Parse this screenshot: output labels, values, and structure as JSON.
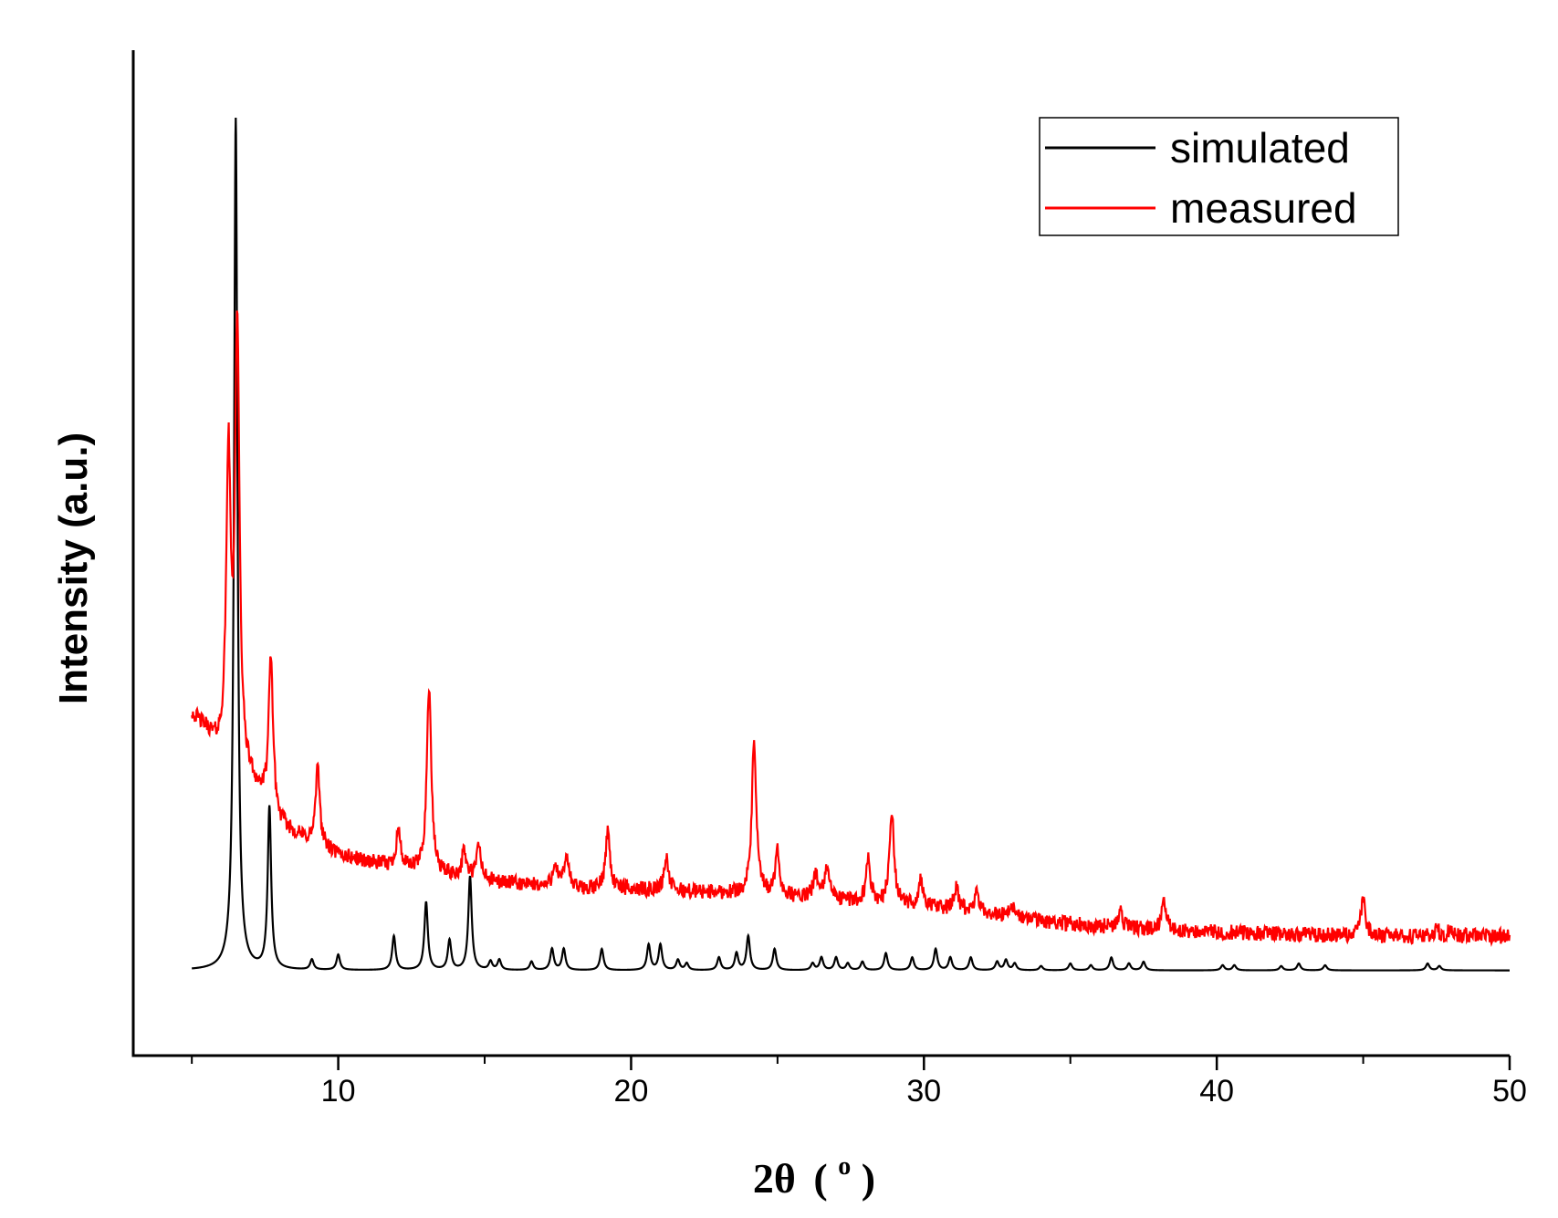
{
  "chart_data": {
    "type": "line",
    "xlabel": "2θ (°)",
    "xlabel_parts": {
      "main": "2θ",
      "open": "(",
      "sup": "o",
      "close": ")"
    },
    "ylabel": "Intensity (a.u.)",
    "xlim": [
      3,
      50
    ],
    "ylim": [
      -0.1,
      1.08
    ],
    "x_ticks": [
      10,
      20,
      30,
      40,
      50
    ],
    "x_minor_ticks": [
      5,
      15,
      25,
      35,
      45
    ],
    "y_ticks_shown": false,
    "grid": false,
    "legend_position": "top-right",
    "series": [
      {
        "name": "simulated",
        "color": "#000000",
        "baseline": 0.0,
        "peaks": [
          [
            6.5,
            1.0
          ],
          [
            7.65,
            0.19
          ],
          [
            9.1,
            0.012
          ],
          [
            10.0,
            0.018
          ],
          [
            11.9,
            0.04
          ],
          [
            13.0,
            0.08
          ],
          [
            13.8,
            0.035
          ],
          [
            14.5,
            0.11
          ],
          [
            15.2,
            0.01
          ],
          [
            15.5,
            0.012
          ],
          [
            16.6,
            0.01
          ],
          [
            17.3,
            0.025
          ],
          [
            17.7,
            0.025
          ],
          [
            19.0,
            0.025
          ],
          [
            20.6,
            0.03
          ],
          [
            21.0,
            0.03
          ],
          [
            21.6,
            0.012
          ],
          [
            21.9,
            0.008
          ],
          [
            23.0,
            0.015
          ],
          [
            23.6,
            0.02
          ],
          [
            24.0,
            0.04
          ],
          [
            24.9,
            0.025
          ],
          [
            26.2,
            0.008
          ],
          [
            26.5,
            0.015
          ],
          [
            27.0,
            0.015
          ],
          [
            27.4,
            0.008
          ],
          [
            27.9,
            0.01
          ],
          [
            28.7,
            0.02
          ],
          [
            29.6,
            0.015
          ],
          [
            30.4,
            0.025
          ],
          [
            30.9,
            0.015
          ],
          [
            31.6,
            0.015
          ],
          [
            32.5,
            0.01
          ],
          [
            32.8,
            0.012
          ],
          [
            33.1,
            0.008
          ],
          [
            34.0,
            0.005
          ],
          [
            35.0,
            0.008
          ],
          [
            35.7,
            0.006
          ],
          [
            36.4,
            0.015
          ],
          [
            37.0,
            0.008
          ],
          [
            37.5,
            0.01
          ],
          [
            40.2,
            0.006
          ],
          [
            40.6,
            0.006
          ],
          [
            42.2,
            0.005
          ],
          [
            42.8,
            0.008
          ],
          [
            43.7,
            0.006
          ],
          [
            47.2,
            0.008
          ],
          [
            47.6,
            0.005
          ]
        ]
      },
      {
        "name": "measured",
        "color": "#ff0000",
        "background": [
          [
            5.0,
            0.3
          ],
          [
            5.5,
            0.28
          ],
          [
            6.0,
            0.25
          ],
          [
            7.0,
            0.22
          ],
          [
            8.0,
            0.17
          ],
          [
            9.0,
            0.15
          ],
          [
            10.0,
            0.135
          ],
          [
            12.0,
            0.12
          ],
          [
            15.0,
            0.105
          ],
          [
            18.0,
            0.095
          ],
          [
            20.0,
            0.095
          ],
          [
            24.0,
            0.09
          ],
          [
            26.0,
            0.085
          ],
          [
            28.0,
            0.08
          ],
          [
            30.0,
            0.075
          ],
          [
            32.0,
            0.068
          ],
          [
            34.0,
            0.058
          ],
          [
            36.0,
            0.052
          ],
          [
            38.0,
            0.047
          ],
          [
            40.0,
            0.045
          ],
          [
            45.0,
            0.04
          ],
          [
            50.0,
            0.04
          ]
        ],
        "peaks": [
          [
            6.25,
            0.35
          ],
          [
            6.55,
            0.52
          ],
          [
            7.7,
            0.18
          ],
          [
            9.3,
            0.09
          ],
          [
            12.05,
            0.045
          ],
          [
            13.1,
            0.22
          ],
          [
            14.3,
            0.03
          ],
          [
            14.8,
            0.04
          ],
          [
            17.4,
            0.03
          ],
          [
            17.8,
            0.04
          ],
          [
            19.2,
            0.07
          ],
          [
            21.2,
            0.04
          ],
          [
            24.2,
            0.18
          ],
          [
            25.0,
            0.05
          ],
          [
            26.3,
            0.03
          ],
          [
            26.7,
            0.04
          ],
          [
            28.1,
            0.05
          ],
          [
            28.9,
            0.11
          ],
          [
            29.9,
            0.03
          ],
          [
            31.1,
            0.025
          ],
          [
            31.8,
            0.02
          ],
          [
            33.0,
            0.015
          ],
          [
            36.7,
            0.02
          ],
          [
            38.2,
            0.035
          ],
          [
            45.0,
            0.045
          ],
          [
            47.5,
            0.01
          ],
          [
            48.0,
            0.01
          ]
        ],
        "noise": 0.009
      }
    ]
  }
}
